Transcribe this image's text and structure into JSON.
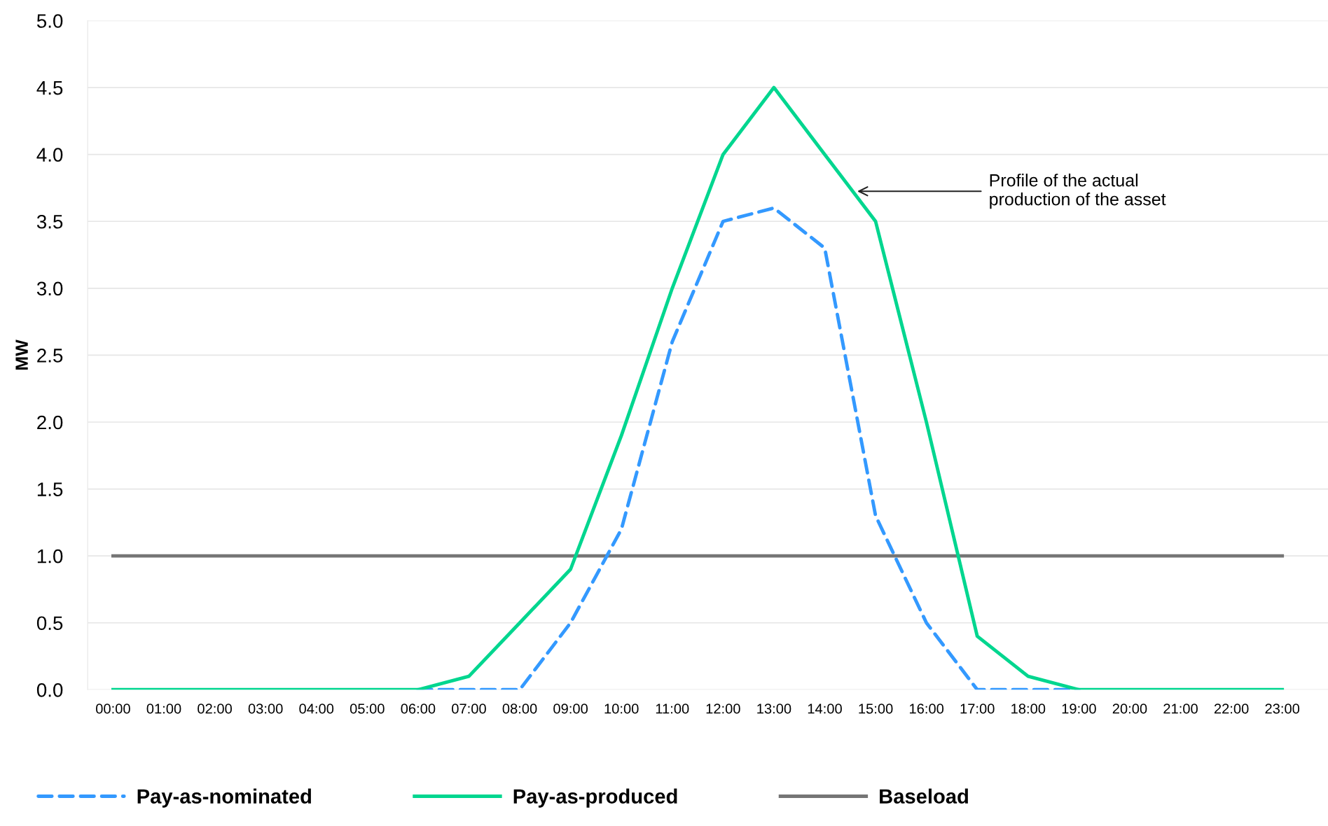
{
  "chart_data": {
    "type": "line",
    "ylabel": "MW",
    "categories": [
      "00:00",
      "01:00",
      "02:00",
      "03:00",
      "04:00",
      "05:00",
      "06:00",
      "07:00",
      "08:00",
      "09:00",
      "10:00",
      "11:00",
      "12:00",
      "13:00",
      "14:00",
      "15:00",
      "16:00",
      "17:00",
      "18:00",
      "19:00",
      "20:00",
      "21:00",
      "22:00",
      "23:00"
    ],
    "series": [
      {
        "name": "Pay-as-nominated",
        "color": "#3399ff",
        "line_style": "dashed",
        "values": [
          null,
          null,
          null,
          null,
          null,
          null,
          0,
          0,
          0,
          0.5,
          1.2,
          2.6,
          3.5,
          3.6,
          3.3,
          1.3,
          0.5,
          0,
          0,
          0,
          null,
          null,
          null,
          null
        ]
      },
      {
        "name": "Pay-as-produced",
        "color": "#00d68f",
        "line_style": "solid",
        "values": [
          0,
          0,
          0,
          0,
          0,
          0,
          0,
          0.1,
          0.5,
          0.9,
          1.9,
          3.0,
          4.0,
          4.5,
          4.0,
          3.5,
          2.0,
          0.4,
          0.1,
          0,
          0,
          0,
          0,
          0
        ]
      },
      {
        "name": "Baseload",
        "color": "#757575",
        "line_style": "solid",
        "values": [
          1,
          1,
          1,
          1,
          1,
          1,
          1,
          1,
          1,
          1,
          1,
          1,
          1,
          1,
          1,
          1,
          1,
          1,
          1,
          1,
          1,
          1,
          1,
          1
        ]
      }
    ],
    "ylim": [
      0,
      5
    ],
    "yticks": [
      {
        "value": 0,
        "label": "0.0"
      },
      {
        "value": 0.5,
        "label": "0.5"
      },
      {
        "value": 1,
        "label": "1.0"
      },
      {
        "value": 1.5,
        "label": "1.5"
      },
      {
        "value": 2,
        "label": "2.0"
      },
      {
        "value": 2.5,
        "label": "2.5"
      },
      {
        "value": 3,
        "label": "3.0"
      },
      {
        "value": 3.5,
        "label": "3.5"
      },
      {
        "value": 4,
        "label": "4.0"
      },
      {
        "value": 4.5,
        "label": "4.5"
      },
      {
        "value": 5,
        "label": "5.0"
      }
    ],
    "grid": "y",
    "legend": "bottom",
    "marker": "none",
    "annotations": [
      "Profile of the actual\nproduction of the asset"
    ]
  }
}
